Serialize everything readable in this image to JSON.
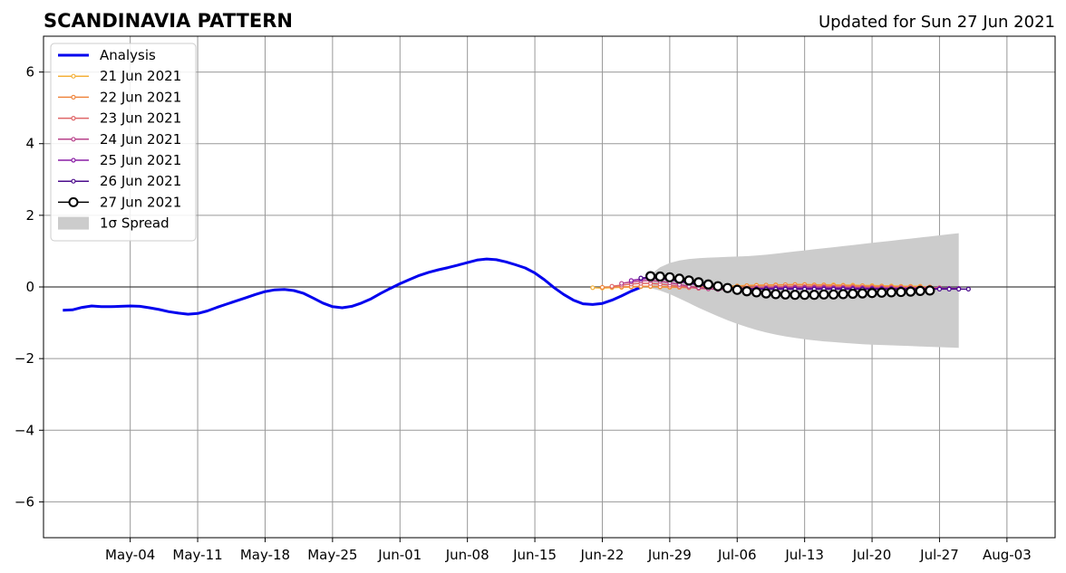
{
  "chart_data": {
    "type": "line",
    "title": "SCANDINAVIA PATTERN",
    "subtitle": "Updated for Sun 27 Jun 2021",
    "xlabel": "",
    "ylabel": "",
    "x_axis": {
      "type": "date",
      "min": "2021-04-25",
      "max": "2021-08-08"
    },
    "ylim": [
      -7,
      7
    ],
    "grid": true,
    "legend_position": "top-left",
    "xticks": [
      {
        "date": "2021-05-04",
        "label": "May-04"
      },
      {
        "date": "2021-05-11",
        "label": "May-11"
      },
      {
        "date": "2021-05-18",
        "label": "May-18"
      },
      {
        "date": "2021-05-25",
        "label": "May-25"
      },
      {
        "date": "2021-06-01",
        "label": "Jun-01"
      },
      {
        "date": "2021-06-08",
        "label": "Jun-08"
      },
      {
        "date": "2021-06-15",
        "label": "Jun-15"
      },
      {
        "date": "2021-06-22",
        "label": "Jun-22"
      },
      {
        "date": "2021-06-29",
        "label": "Jun-29"
      },
      {
        "date": "2021-07-06",
        "label": "Jul-06"
      },
      {
        "date": "2021-07-13",
        "label": "Jul-13"
      },
      {
        "date": "2021-07-20",
        "label": "Jul-20"
      },
      {
        "date": "2021-07-27",
        "label": "Jul-27"
      },
      {
        "date": "2021-08-03",
        "label": "Aug-03"
      }
    ],
    "yticks": [
      {
        "value": 6,
        "label": "6"
      },
      {
        "value": 4,
        "label": "4"
      },
      {
        "value": 2,
        "label": "2"
      },
      {
        "value": 0,
        "label": "0"
      },
      {
        "value": -2,
        "label": "−2"
      },
      {
        "value": -4,
        "label": "−4"
      },
      {
        "value": -6,
        "label": "−6"
      }
    ],
    "analysis": {
      "name": "Analysis",
      "color": "#0000ee",
      "start_date": "2021-04-27",
      "values": [
        -0.65,
        -0.64,
        -0.57,
        -0.53,
        -0.55,
        -0.55,
        -0.54,
        -0.53,
        -0.54,
        -0.58,
        -0.63,
        -0.69,
        -0.73,
        -0.76,
        -0.74,
        -0.67,
        -0.57,
        -0.48,
        -0.39,
        -0.3,
        -0.21,
        -0.13,
        -0.08,
        -0.07,
        -0.1,
        -0.18,
        -0.31,
        -0.45,
        -0.55,
        -0.58,
        -0.54,
        -0.45,
        -0.33,
        -0.18,
        -0.04,
        0.09,
        0.21,
        0.32,
        0.41,
        0.48,
        0.54,
        0.61,
        0.68,
        0.75,
        0.78,
        0.76,
        0.7,
        0.62,
        0.53,
        0.39,
        0.2,
        -0.02,
        -0.21,
        -0.37,
        -0.47,
        -0.49,
        -0.46,
        -0.37,
        -0.25,
        -0.12,
        -0.01
      ]
    },
    "forecasts": [
      {
        "name": "21 Jun 2021",
        "color": "#f4b13a",
        "start_date": "2021-06-21",
        "values": [
          -0.02,
          -0.03,
          -0.02,
          -0.01,
          0.0,
          0.01,
          0.01,
          0.0,
          -0.01,
          -0.01,
          0.0,
          0.01,
          0.02,
          0.02,
          0.02,
          0.03,
          0.04,
          0.05,
          0.05,
          0.06,
          0.06,
          0.07,
          0.07,
          0.06,
          0.06,
          0.06,
          0.05,
          0.05,
          0.04,
          0.04,
          0.03,
          0.03,
          0.02,
          0.02,
          0.02
        ]
      },
      {
        "name": "22 Jun 2021",
        "color": "#ef8740",
        "start_date": "2021-06-22",
        "values": [
          -0.01,
          0.0,
          0.0,
          0.01,
          0.02,
          0.02,
          0.01,
          0.0,
          -0.01,
          -0.02,
          -0.02,
          -0.01,
          0.0,
          0.01,
          0.02,
          0.03,
          0.04,
          0.05,
          0.05,
          0.06,
          0.06,
          0.06,
          0.05,
          0.05,
          0.04,
          0.04,
          0.03,
          0.03,
          0.02,
          0.02,
          0.01,
          0.01,
          0.01,
          0.0,
          0.0
        ]
      },
      {
        "name": "23 Jun 2021",
        "color": "#df6567",
        "start_date": "2021-06-23",
        "values": [
          0.02,
          0.05,
          0.08,
          0.1,
          0.1,
          0.08,
          0.05,
          0.02,
          -0.01,
          -0.04,
          -0.05,
          -0.05,
          -0.04,
          -0.03,
          -0.02,
          -0.01,
          0.0,
          0.0,
          0.01,
          0.01,
          0.01,
          0.01,
          0.01,
          0.0,
          0.0,
          0.0,
          -0.01,
          -0.01,
          -0.01,
          -0.01,
          -0.02,
          -0.02,
          -0.02,
          -0.02,
          -0.02
        ]
      },
      {
        "name": "24 Jun 2021",
        "color": "#b8418a",
        "start_date": "2021-06-24",
        "values": [
          0.1,
          0.14,
          0.17,
          0.18,
          0.16,
          0.12,
          0.07,
          0.02,
          -0.02,
          -0.05,
          -0.07,
          -0.07,
          -0.06,
          -0.05,
          -0.04,
          -0.03,
          -0.02,
          -0.02,
          -0.01,
          -0.01,
          -0.01,
          -0.01,
          -0.02,
          -0.02,
          -0.02,
          -0.02,
          -0.03,
          -0.03,
          -0.03,
          -0.03,
          -0.03,
          -0.03,
          -0.04,
          -0.04,
          -0.04
        ]
      },
      {
        "name": "25 Jun 2021",
        "color": "#8a1fa5",
        "start_date": "2021-06-25",
        "values": [
          0.18,
          0.22,
          0.24,
          0.23,
          0.2,
          0.15,
          0.1,
          0.05,
          0.01,
          -0.02,
          -0.04,
          -0.05,
          -0.05,
          -0.04,
          -0.04,
          -0.03,
          -0.03,
          -0.03,
          -0.03,
          -0.03,
          -0.03,
          -0.03,
          -0.03,
          -0.04,
          -0.04,
          -0.04,
          -0.04,
          -0.04,
          -0.04,
          -0.04,
          -0.04,
          -0.04,
          -0.04,
          -0.04,
          -0.04
        ]
      },
      {
        "name": "26 Jun 2021",
        "color": "#4b0c8c",
        "start_date": "2021-06-26",
        "values": [
          0.25,
          0.27,
          0.26,
          0.22,
          0.17,
          0.12,
          0.07,
          0.03,
          0.0,
          -0.03,
          -0.05,
          -0.06,
          -0.06,
          -0.06,
          -0.06,
          -0.06,
          -0.06,
          -0.06,
          -0.06,
          -0.06,
          -0.06,
          -0.06,
          -0.06,
          -0.06,
          -0.06,
          -0.06,
          -0.06,
          -0.06,
          -0.06,
          -0.06,
          -0.06,
          -0.06,
          -0.06,
          -0.06,
          -0.06
        ]
      },
      {
        "name": "27 Jun 2021",
        "color": "#000000",
        "start_date": "2021-06-27",
        "marker": "open-circle",
        "values": [
          0.3,
          0.29,
          0.27,
          0.23,
          0.18,
          0.13,
          0.07,
          0.02,
          -0.03,
          -0.08,
          -0.12,
          -0.15,
          -0.18,
          -0.2,
          -0.21,
          -0.22,
          -0.22,
          -0.22,
          -0.21,
          -0.21,
          -0.2,
          -0.19,
          -0.18,
          -0.17,
          -0.16,
          -0.15,
          -0.14,
          -0.13,
          -0.11,
          -0.1
        ]
      }
    ],
    "spread": {
      "name": "1σ Spread",
      "color": "#cccccc",
      "start_date": "2021-06-27",
      "upper": [
        0.35,
        0.55,
        0.67,
        0.74,
        0.78,
        0.8,
        0.82,
        0.83,
        0.84,
        0.85,
        0.86,
        0.88,
        0.9,
        0.93,
        0.96,
        0.99,
        1.02,
        1.05,
        1.08,
        1.11,
        1.14,
        1.17,
        1.2,
        1.23,
        1.26,
        1.29,
        1.32,
        1.35,
        1.38,
        1.41,
        1.44,
        1.47,
        1.5
      ],
      "lower": [
        -0.03,
        -0.1,
        -0.2,
        -0.32,
        -0.45,
        -0.58,
        -0.7,
        -0.82,
        -0.93,
        -1.03,
        -1.12,
        -1.2,
        -1.27,
        -1.33,
        -1.38,
        -1.42,
        -1.46,
        -1.49,
        -1.52,
        -1.54,
        -1.56,
        -1.58,
        -1.6,
        -1.61,
        -1.62,
        -1.63,
        -1.64,
        -1.65,
        -1.66,
        -1.67,
        -1.68,
        -1.69,
        -1.7
      ]
    }
  }
}
